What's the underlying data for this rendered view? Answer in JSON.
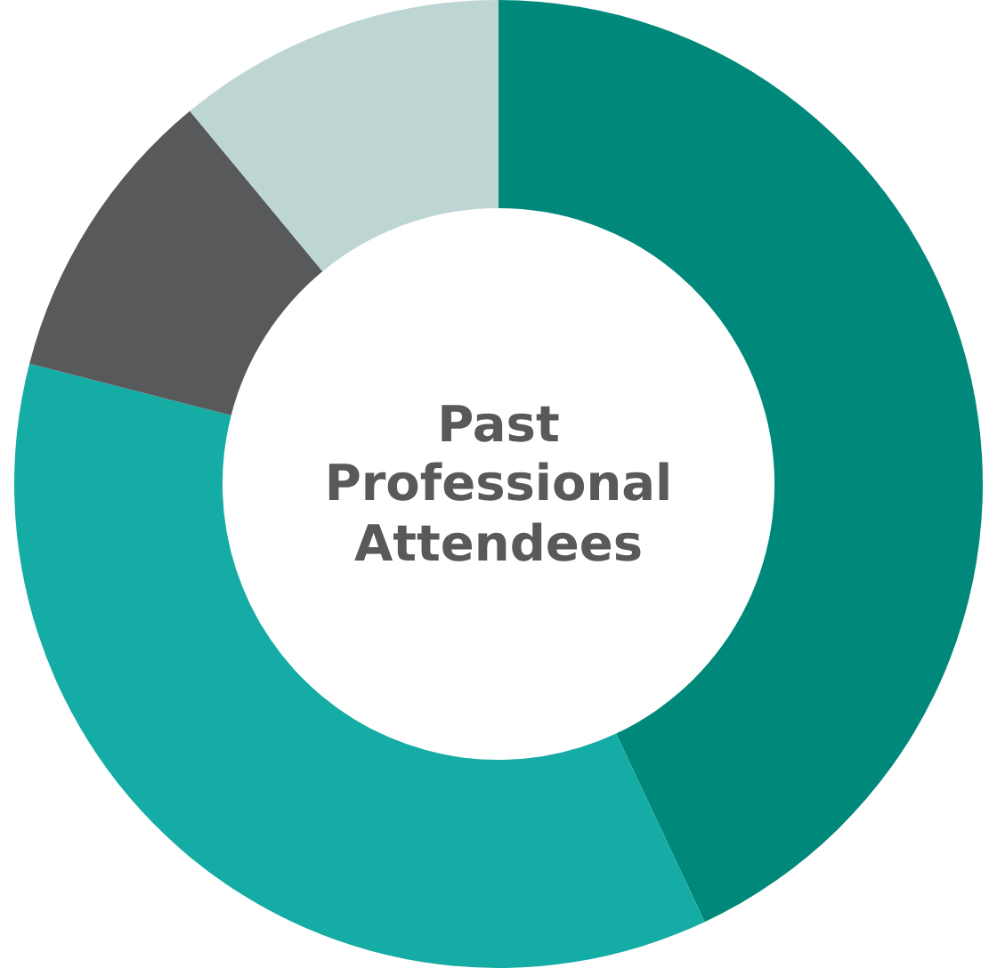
{
  "chart_data": {
    "type": "donut",
    "title": "Past Professional Attendees",
    "categories": [
      null,
      null,
      null,
      null
    ],
    "values": [
      43,
      36,
      10,
      11
    ],
    "colors": [
      "#00897b",
      "#14aca4",
      "#58595b",
      "#bdd6d3"
    ],
    "legend": false
  }
}
